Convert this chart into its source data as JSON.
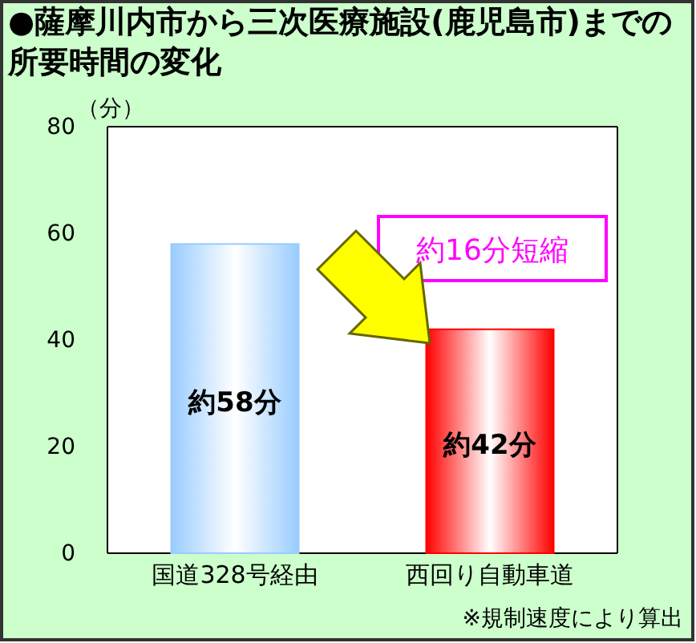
{
  "chart_data": {
    "type": "bar",
    "title": "●薩摩川内市から三次医療施設(鹿児島市)までの所要時間の変化",
    "ylabel": "（分）",
    "categories": [
      "国道328号経由",
      "西回り自動車道"
    ],
    "values": [
      58,
      42
    ],
    "colors": [
      "#99ccff",
      "#ff0000"
    ],
    "value_labels": [
      "約58分",
      "約42分"
    ],
    "ylim": [
      0,
      80
    ],
    "yticks": [
      0,
      20,
      40,
      60,
      80
    ],
    "annotations": [
      "約16分短縮",
      "※規制速度により算出"
    ]
  }
}
